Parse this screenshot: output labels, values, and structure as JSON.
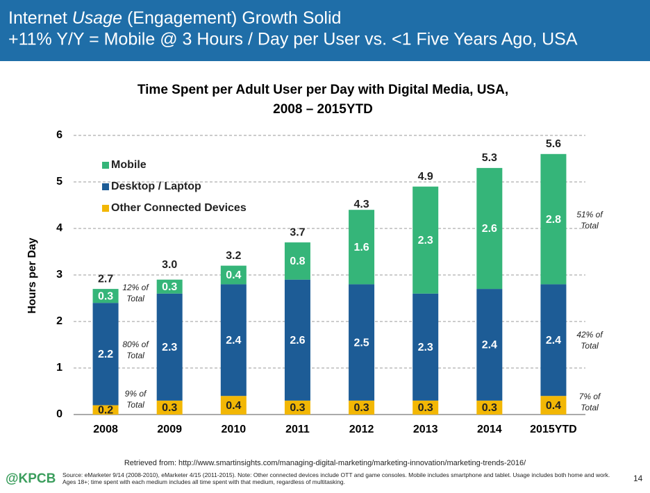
{
  "header": {
    "title_parts": [
      "Internet ",
      "Usage",
      " (Engagement) Growth Solid"
    ],
    "subtitle": "+11% Y/Y = Mobile @ 3 Hours / Day per User vs. <1  Five Years Ago, USA"
  },
  "chart_data": {
    "type": "stacked_bar",
    "title": [
      "Time Spent per Adult User per Day with Digital Media, USA,",
      "2008 – 2015YTD"
    ],
    "y_label": "Hours per Day",
    "categories": [
      "2008",
      "2009",
      "2010",
      "2011",
      "2012",
      "2013",
      "2014",
      "2015YTD"
    ],
    "series": [
      {
        "name": "Other Connected Devices",
        "color": "#f2b705",
        "values": [
          0.2,
          0.3,
          0.4,
          0.3,
          0.3,
          0.3,
          0.3,
          0.4
        ]
      },
      {
        "name": "Desktop / Laptop",
        "color": "#1d5c96",
        "values": [
          2.2,
          2.3,
          2.4,
          2.6,
          2.5,
          2.3,
          2.4,
          2.4
        ]
      },
      {
        "name": "Mobile",
        "color": "#35b579",
        "values": [
          0.3,
          0.3,
          0.4,
          0.8,
          1.6,
          2.3,
          2.6,
          2.8
        ]
      }
    ],
    "totals": {
      "values": [
        2.7,
        3,
        3.2,
        3.7,
        4.3,
        4.9,
        5.3,
        5.6
      ],
      "value_labels": [
        "2.7",
        "3.0",
        "3.2",
        "3.7",
        "4.3",
        "4.9",
        "5.3",
        "5.6"
      ]
    },
    "annotations": [
      {
        "lines": [
          "12% of",
          "Total"
        ]
      },
      {
        "lines": [
          "80% of",
          "Total"
        ]
      },
      {
        "lines": [
          "9% of",
          "Total"
        ]
      },
      {
        "lines": [
          "51% of",
          "Total"
        ]
      },
      {
        "lines": [
          "42% of",
          "Total"
        ]
      },
      {
        "lines": [
          "7% of",
          "Total"
        ]
      }
    ],
    "ylim": [
      0,
      6
    ],
    "yticks": [
      0,
      1,
      2,
      3,
      4,
      5,
      6
    ],
    "grid": true
  },
  "footer": {
    "retrieved": "Retrieved from: http://www.smartinsights.com/managing-digital-marketing/marketing-innovation/marketing-trends-2016/",
    "logo": "@KPCB",
    "source": "Source: eMarketer 9/14 (2008-2010), eMarketer 4/15 (2011-2015). Note: Other connected devices include OTT and game consoles. Mobile includes smartphone and tablet. Usage includes both home and work. Ages 18+; time spent with each medium includes all time spent with that medium, regardless of multitasking.",
    "page": 14
  }
}
